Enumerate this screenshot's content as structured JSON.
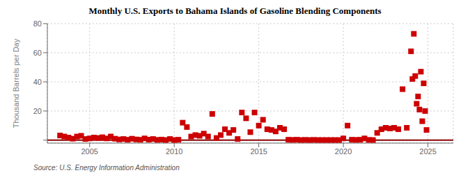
{
  "chart_data": {
    "type": "scatter",
    "title": "Monthly U.S. Exports to Bahama Islands of Gasoline Blending Components",
    "y_label": "Thousand Barrels per Day",
    "annotations": [
      "Source: U.S. Energy Information Administration"
    ],
    "color": "#cc0000",
    "marker": "square",
    "grid": true,
    "xlim": [
      2002.5,
      2026.5
    ],
    "xticks": [
      2005,
      2010,
      2015,
      2020,
      2025
    ],
    "ylim": [
      -2,
      80
    ],
    "yticks": [
      {
        "value": 0,
        "label": ""
      },
      20,
      40,
      60,
      80
    ],
    "x": [
      2003.25,
      2003.5,
      2003.75,
      2004.0,
      2004.25,
      2004.5,
      2004.75,
      2005.0,
      2005.25,
      2005.5,
      2005.75,
      2006.0,
      2006.25,
      2006.5,
      2006.75,
      2007.0,
      2007.25,
      2007.5,
      2007.75,
      2008.0,
      2008.25,
      2008.5,
      2008.75,
      2009.0,
      2009.25,
      2009.5,
      2009.75,
      2010.0,
      2010.25,
      2010.5,
      2010.75,
      2011.0,
      2011.25,
      2011.5,
      2011.75,
      2012.0,
      2012.25,
      2012.5,
      2012.75,
      2013.0,
      2013.25,
      2013.5,
      2013.75,
      2014.0,
      2014.25,
      2014.5,
      2014.75,
      2015.0,
      2015.25,
      2015.5,
      2015.75,
      2016.0,
      2016.25,
      2016.5,
      2016.75,
      2017.0,
      2017.25,
      2017.5,
      2017.75,
      2018.0,
      2018.25,
      2018.5,
      2018.75,
      2019.0,
      2019.25,
      2019.5,
      2019.75,
      2020.0,
      2020.25,
      2020.5,
      2020.75,
      2021.0,
      2021.25,
      2021.5,
      2021.75,
      2022.0,
      2022.25,
      2022.5,
      2022.75,
      2023.0,
      2023.25,
      2023.5,
      2023.75,
      2024.0,
      2024.083,
      2024.167,
      2024.25,
      2024.333,
      2024.417,
      2024.5,
      2024.583,
      2024.667,
      2024.75,
      2024.833,
      2024.917
    ],
    "values": [
      3.2,
      2.5,
      1.8,
      1.0,
      2.5,
      3.0,
      0.8,
      1.2,
      1.8,
      1.5,
      2.0,
      1.2,
      2.5,
      1.0,
      0.5,
      0.8,
      0.3,
      1.0,
      0.5,
      0.3,
      1.2,
      0.4,
      0.8,
      0.2,
      0.4,
      0.1,
      0.8,
      0.1,
      0.3,
      12.0,
      9.0,
      2.5,
      3.5,
      3.0,
      4.5,
      2.5,
      18.0,
      1.5,
      3.5,
      7.5,
      5.0,
      7.0,
      0.8,
      19.0,
      15.0,
      5.5,
      19.0,
      10.0,
      14.0,
      7.5,
      7.0,
      6.0,
      8.5,
      7.5,
      0.3,
      0.2,
      0.3,
      0.1,
      0.2,
      0.1,
      0.2,
      0.1,
      0.1,
      0.1,
      0.1,
      0.1,
      0.1,
      1.2,
      10.0,
      0.3,
      0.2,
      0.3,
      1.2,
      0.2,
      0.1,
      5.0,
      7.5,
      8.5,
      8.0,
      8.5,
      7.5,
      35.0,
      8.5,
      61.0,
      42.0,
      73.0,
      44.0,
      25.0,
      30.0,
      21.0,
      47.0,
      13.0,
      39.0,
      20.0,
      7.0
    ]
  }
}
